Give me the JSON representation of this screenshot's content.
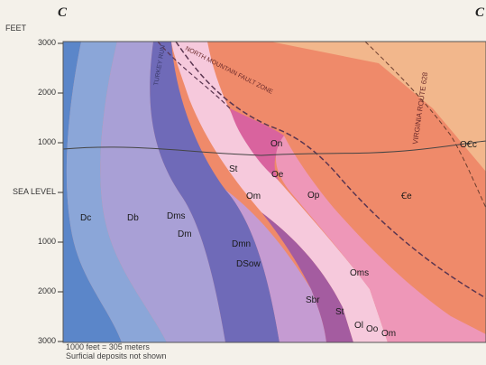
{
  "corner_letters": {
    "left": "C",
    "right": "C"
  },
  "axis": {
    "unit": "FEET",
    "ticks": [
      "3000",
      "2000",
      "1000",
      "SEA LEVEL",
      "1000",
      "2000",
      "3000"
    ]
  },
  "features": {
    "north_mountain_fault_zone": "NORTH MOUNTAIN FAULT ZONE",
    "turkey_run": "TURKEY RUN",
    "virginia_route": "VIRGINIA ROUTE 628"
  },
  "units": {
    "Dc": "Dc",
    "Db": "Db",
    "Dms": "Dms",
    "Dm": "Dm",
    "Dmn": "Dmn",
    "DSow": "DSow",
    "Sbr": "Sbr",
    "St_upper": "St",
    "St_lower": "St",
    "Om": "Om",
    "Oe": "Oe",
    "On": "On",
    "Op": "Op",
    "Oms": "Oms",
    "Ce": "Ꞓe",
    "OCc": "OꞒc",
    "Ol": "Ol",
    "Oo": "Oo",
    "Om_lower": "Om"
  },
  "notes": {
    "scale": "1000 feet = 305 meters",
    "surficial": "Surficial deposits not shown"
  },
  "colors": {
    "dc": "#5b86c9",
    "db": "#8ba6d8",
    "dm": "#a9a0d6",
    "dsow": "#6f6ab8",
    "sbr": "#c59bd2",
    "st_low": "#a45ca0",
    "om": "#f6c9dc",
    "oe": "#d9639e",
    "op": "#ee97b8",
    "ce": "#ef8a6a",
    "occ": "#f2b78c"
  }
}
